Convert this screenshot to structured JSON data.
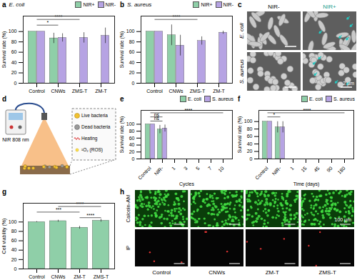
{
  "chart_data": [
    {
      "type": "bar",
      "title": "a",
      "subtitle": "E. coli",
      "ylabel": "Survival rate (%)",
      "categories": [
        "Control",
        "CNWs",
        "ZMS-T",
        "ZM-T"
      ],
      "series": [
        {
          "name": "NIR+",
          "color": "#8fcfa8",
          "values": [
            100,
            87,
            0,
            0
          ],
          "errors": [
            0,
            10,
            0,
            0
          ]
        },
        {
          "name": "NIR-",
          "color": "#b6a3e3",
          "values": [
            100,
            88,
            88,
            92
          ],
          "errors": [
            0,
            8,
            10,
            15
          ]
        }
      ],
      "ylim": [
        0,
        130
      ],
      "yticks": [
        0,
        20,
        40,
        60,
        80,
        100
      ],
      "annotations": [
        {
          "text": "****",
          "from": "Control",
          "to": "ZMS-T"
        },
        {
          "text": "*",
          "from": "Control",
          "to": "CNWs"
        }
      ],
      "legend": "top-right"
    },
    {
      "type": "bar",
      "title": "b",
      "subtitle": "S. aureus",
      "ylabel": "Survival rate (%)",
      "categories": [
        "Control",
        "CNWs",
        "ZMS-T",
        "ZM-T"
      ],
      "series": [
        {
          "name": "NIR+",
          "color": "#8fcfa8",
          "values": [
            100,
            93,
            0,
            0
          ],
          "errors": [
            0,
            20,
            0,
            0
          ]
        },
        {
          "name": "NIR-",
          "color": "#b6a3e3",
          "values": [
            100,
            73,
            82,
            98
          ],
          "errors": [
            0,
            20,
            8,
            3
          ]
        }
      ],
      "ylim": [
        0,
        130
      ],
      "yticks": [
        0,
        20,
        40,
        60,
        80,
        100
      ],
      "annotations": [
        {
          "text": "****",
          "from": "Control",
          "to": "ZMS-T"
        }
      ],
      "legend": "top-right"
    },
    {
      "type": "bar",
      "title": "e",
      "xlabel": "Cycles",
      "ylabel": "Survival rate (%)",
      "categories": [
        "Control",
        "NIR-",
        "1",
        "3",
        "5",
        "7",
        "10"
      ],
      "series": [
        {
          "name": "E. coli",
          "color": "#8fcfa8",
          "values": [
            100,
            85,
            0,
            0,
            0,
            0,
            0
          ],
          "errors": [
            0,
            12,
            0,
            0,
            0,
            0,
            0
          ]
        },
        {
          "name": "S. aureus",
          "color": "#b6a3e3",
          "values": [
            100,
            88,
            0,
            0,
            0,
            0,
            0
          ],
          "errors": [
            0,
            10,
            0,
            0,
            0,
            0,
            0
          ]
        }
      ],
      "ylim": [
        0,
        140
      ],
      "yticks": [
        0,
        20,
        40,
        60,
        80,
        100
      ],
      "annotations": [
        {
          "text": "****",
          "from": "Control",
          "to": "10"
        },
        {
          "text": "ns",
          "from": "Control",
          "to": "NIR-"
        },
        {
          "text": "ns",
          "from": "Control",
          "to": "NIR-"
        }
      ],
      "legend": "top-right"
    },
    {
      "type": "bar",
      "title": "f",
      "xlabel": "Time (days)",
      "ylabel": "Survival rate (%)",
      "categories": [
        "Control",
        "NIR-",
        "1",
        "15",
        "45",
        "90",
        "180"
      ],
      "series": [
        {
          "name": "E. coli",
          "color": "#8fcfa8",
          "values": [
            100,
            85,
            0,
            0,
            0,
            0,
            0
          ],
          "errors": [
            0,
            15,
            0,
            0,
            0,
            0,
            0
          ]
        },
        {
          "name": "S. aureus",
          "color": "#b6a3e3",
          "values": [
            100,
            85,
            0,
            0,
            0,
            0,
            0
          ],
          "errors": [
            0,
            15,
            0,
            0,
            0,
            0,
            0
          ]
        }
      ],
      "ylim": [
        0,
        130
      ],
      "yticks": [
        0,
        20,
        40,
        60,
        80,
        100
      ],
      "annotations": [
        {
          "text": "****",
          "from": "Control",
          "to": "180"
        },
        {
          "text": "*",
          "from": "Control",
          "to": "NIR-"
        }
      ],
      "legend": "top-right"
    },
    {
      "type": "bar",
      "title": "g",
      "ylabel": "Cell viability (%)",
      "categories": [
        "Control",
        "CNWs",
        "ZM-T",
        "ZMS-T"
      ],
      "values": [
        100,
        102,
        88,
        103
      ],
      "errors": [
        1,
        2,
        3,
        3
      ],
      "color": "#8fcfa8",
      "ylim": [
        0,
        140
      ],
      "yticks": [
        0,
        20,
        40,
        60,
        80,
        100
      ],
      "annotations": [
        {
          "text": "****",
          "from": "CNWs",
          "to": "ZMS-T"
        },
        {
          "text": "***",
          "from": "Control",
          "to": "ZM-T"
        },
        {
          "text": "****",
          "from": "ZM-T",
          "to": "ZMS-T"
        }
      ]
    }
  ],
  "panel_c": {
    "title": "c",
    "columns": [
      "NIR-",
      "NIR+"
    ],
    "rows": [
      "E. coli",
      "S. aureus"
    ],
    "scale_bar": "2 µm"
  },
  "panel_d": {
    "title": "d",
    "source": "NIR 808 nm",
    "key_items": [
      "Live bacteria",
      "Dead bacteria",
      "Heating",
      "¹O₂ (ROS)"
    ]
  },
  "panel_h": {
    "title": "h",
    "rows": [
      "Calcein-AM",
      "IP"
    ],
    "columns": [
      "Control",
      "CNWs",
      "ZM-T",
      "ZMS-T"
    ],
    "scale_bar": "100 µm"
  }
}
